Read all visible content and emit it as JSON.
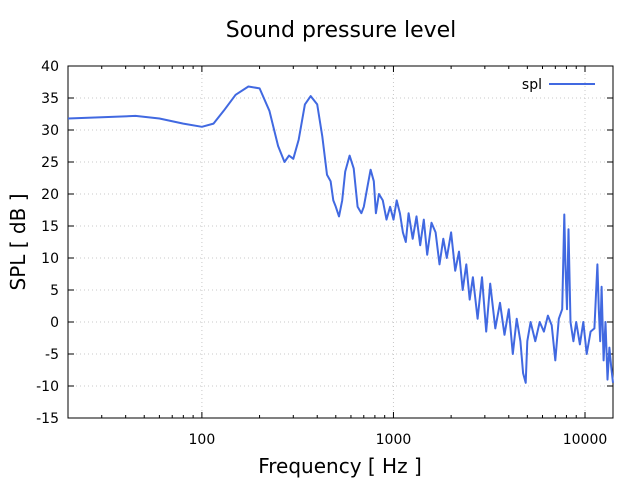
{
  "chart_data": {
    "type": "line",
    "title": "Sound pressure level",
    "xlabel": "Frequency [ Hz ]",
    "ylabel": "SPL [ dB ]",
    "xscale": "log",
    "xlim": [
      20,
      14000
    ],
    "ylim": [
      -15,
      40
    ],
    "xticks": [
      {
        "value": 100,
        "label": "100"
      },
      {
        "value": 1000,
        "label": "1000"
      },
      {
        "value": 10000,
        "label": "10000"
      }
    ],
    "yticks": [
      {
        "value": 40,
        "label": "40"
      },
      {
        "value": 35,
        "label": "35"
      },
      {
        "value": 30,
        "label": "30"
      },
      {
        "value": 25,
        "label": "25"
      },
      {
        "value": 20,
        "label": "20"
      },
      {
        "value": 15,
        "label": "15"
      },
      {
        "value": 10,
        "label": "10"
      },
      {
        "value": 5,
        "label": "5"
      },
      {
        "value": 0,
        "label": "0"
      },
      {
        "value": -5,
        "label": "-5"
      },
      {
        "value": -10,
        "label": "-10"
      },
      {
        "value": -15,
        "label": "-15"
      }
    ],
    "grid": true,
    "legend_position": "top-right",
    "colors": {
      "series": "#4169e1",
      "grid": "#c8c8c8",
      "axis": "#000000"
    },
    "series": [
      {
        "name": "spl",
        "x": [
          20,
          30,
          45,
          60,
          80,
          100,
          115,
          130,
          150,
          175,
          200,
          225,
          250,
          270,
          285,
          300,
          320,
          345,
          370,
          400,
          425,
          450,
          470,
          485,
          500,
          520,
          540,
          560,
          590,
          620,
          650,
          680,
          700,
          730,
          760,
          790,
          810,
          840,
          880,
          920,
          960,
          1000,
          1040,
          1080,
          1120,
          1160,
          1200,
          1260,
          1320,
          1380,
          1440,
          1500,
          1580,
          1660,
          1740,
          1820,
          1900,
          2000,
          2100,
          2200,
          2300,
          2400,
          2500,
          2600,
          2750,
          2900,
          3050,
          3200,
          3400,
          3600,
          3800,
          4000,
          4200,
          4400,
          4600,
          4750,
          4900,
          5000,
          5200,
          5500,
          5800,
          6100,
          6400,
          6700,
          7000,
          7300,
          7600,
          7800,
          7900,
          8050,
          8200,
          8400,
          8700,
          9000,
          9400,
          9800,
          10200,
          10700,
          11200,
          11600,
          11800,
          12000,
          12200,
          12500,
          12800,
          13100,
          13400,
          13700,
          14000
        ],
        "values": [
          31.8,
          32.0,
          32.2,
          31.8,
          31.0,
          30.5,
          31.0,
          33.0,
          35.5,
          36.8,
          36.5,
          33.0,
          27.5,
          25.0,
          26.0,
          25.5,
          28.5,
          34.0,
          35.3,
          34.0,
          29.0,
          23.0,
          22.0,
          19.0,
          18.0,
          16.5,
          19.0,
          23.5,
          26.0,
          24.0,
          18.0,
          17.0,
          18.0,
          21.0,
          23.8,
          22.0,
          17.0,
          20.0,
          19.0,
          16.0,
          18.0,
          16.0,
          19.0,
          17.0,
          14.0,
          12.5,
          17.0,
          13.0,
          16.5,
          12.0,
          16.0,
          10.5,
          15.5,
          14.0,
          9.0,
          13.0,
          10.0,
          14.0,
          8.0,
          11.0,
          5.0,
          9.0,
          3.5,
          7.0,
          0.5,
          7.0,
          -1.5,
          6.0,
          -1.0,
          3.0,
          -2.0,
          2.0,
          -5.0,
          0.5,
          -3.0,
          -8.0,
          -9.5,
          -3.0,
          0.0,
          -3.0,
          0.0,
          -1.5,
          1.0,
          -0.5,
          -6.0,
          0.5,
          2.0,
          16.8,
          9.0,
          2.0,
          14.5,
          0.0,
          -3.0,
          0.0,
          -3.5,
          0.0,
          -5.0,
          -1.5,
          -1.0,
          9.0,
          2.0,
          -3.0,
          5.5,
          -6.0,
          0.0,
          -9.0,
          -4.0,
          -7.0,
          -9.5
        ]
      }
    ]
  }
}
